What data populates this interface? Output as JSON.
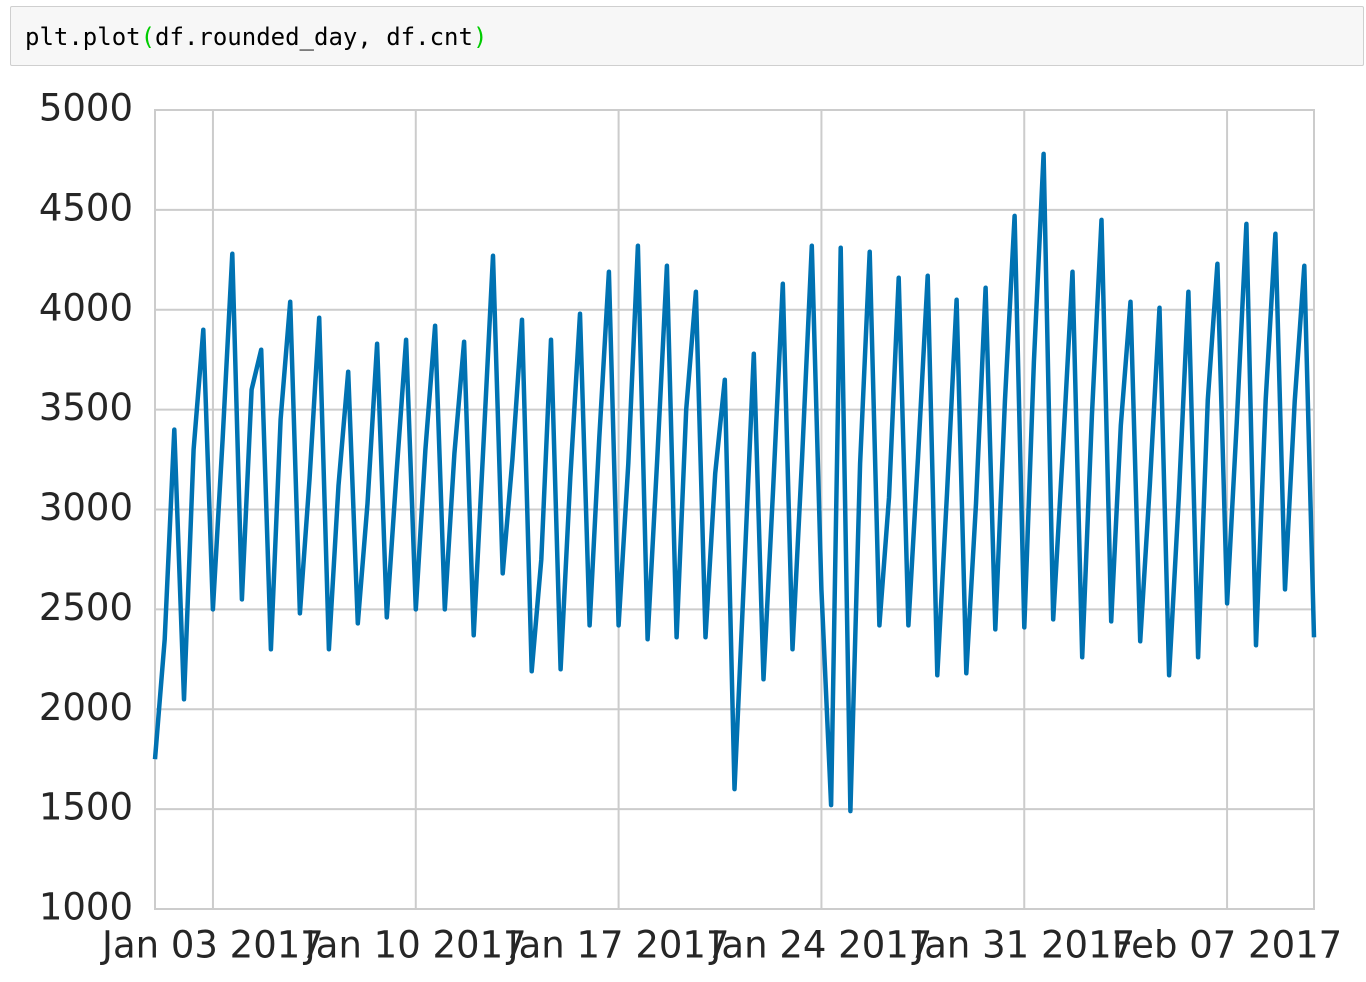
{
  "code": {
    "tokens": [
      {
        "text": "plt.plot",
        "color": "#000000"
      },
      {
        "text": "(",
        "color": "#00cc00"
      },
      {
        "text": "df.rounded_day, df.cnt",
        "color": "#000000"
      },
      {
        "text": ")",
        "color": "#00cc00"
      }
    ]
  },
  "chart_data": {
    "type": "line",
    "x": [
      "2017-01-01 00:00",
      "2017-01-01 08:00",
      "2017-01-01 16:00",
      "2017-01-02 00:00",
      "2017-01-02 08:00",
      "2017-01-02 16:00",
      "2017-01-03 00:00",
      "2017-01-03 08:00",
      "2017-01-03 16:00",
      "2017-01-04 00:00",
      "2017-01-04 08:00",
      "2017-01-04 16:00",
      "2017-01-05 00:00",
      "2017-01-05 08:00",
      "2017-01-05 16:00",
      "2017-01-06 00:00",
      "2017-01-06 08:00",
      "2017-01-06 16:00",
      "2017-01-07 00:00",
      "2017-01-07 08:00",
      "2017-01-07 16:00",
      "2017-01-08 00:00",
      "2017-01-08 08:00",
      "2017-01-08 16:00",
      "2017-01-09 00:00",
      "2017-01-09 08:00",
      "2017-01-09 16:00",
      "2017-01-10 00:00",
      "2017-01-10 08:00",
      "2017-01-10 16:00",
      "2017-01-11 00:00",
      "2017-01-11 08:00",
      "2017-01-11 16:00",
      "2017-01-12 00:00",
      "2017-01-12 08:00",
      "2017-01-12 16:00",
      "2017-01-13 00:00",
      "2017-01-13 08:00",
      "2017-01-13 16:00",
      "2017-01-14 00:00",
      "2017-01-14 08:00",
      "2017-01-14 16:00",
      "2017-01-15 00:00",
      "2017-01-15 08:00",
      "2017-01-15 16:00",
      "2017-01-16 00:00",
      "2017-01-16 08:00",
      "2017-01-16 16:00",
      "2017-01-17 00:00",
      "2017-01-17 08:00",
      "2017-01-17 16:00",
      "2017-01-18 00:00",
      "2017-01-18 08:00",
      "2017-01-18 16:00",
      "2017-01-19 00:00",
      "2017-01-19 08:00",
      "2017-01-19 16:00",
      "2017-01-20 00:00",
      "2017-01-20 08:00",
      "2017-01-20 16:00",
      "2017-01-21 00:00",
      "2017-01-21 08:00",
      "2017-01-21 16:00",
      "2017-01-22 00:00",
      "2017-01-22 08:00",
      "2017-01-22 16:00",
      "2017-01-23 00:00",
      "2017-01-23 08:00",
      "2017-01-23 16:00",
      "2017-01-24 00:00",
      "2017-01-24 08:00",
      "2017-01-24 16:00",
      "2017-01-25 00:00",
      "2017-01-25 08:00",
      "2017-01-25 16:00",
      "2017-01-26 00:00",
      "2017-01-26 08:00",
      "2017-01-26 16:00",
      "2017-01-27 00:00",
      "2017-01-27 08:00",
      "2017-01-27 16:00",
      "2017-01-28 00:00",
      "2017-01-28 08:00",
      "2017-01-28 16:00",
      "2017-01-29 00:00",
      "2017-01-29 08:00",
      "2017-01-29 16:00",
      "2017-01-30 00:00",
      "2017-01-30 08:00",
      "2017-01-30 16:00",
      "2017-01-31 00:00",
      "2017-01-31 08:00",
      "2017-01-31 16:00",
      "2017-02-01 00:00",
      "2017-02-01 08:00",
      "2017-02-01 16:00",
      "2017-02-02 00:00",
      "2017-02-02 08:00",
      "2017-02-02 16:00",
      "2017-02-03 00:00",
      "2017-02-03 08:00",
      "2017-02-03 16:00",
      "2017-02-04 00:00",
      "2017-02-04 08:00",
      "2017-02-04 16:00",
      "2017-02-05 00:00",
      "2017-02-05 08:00",
      "2017-02-05 16:00",
      "2017-02-06 00:00",
      "2017-02-06 08:00",
      "2017-02-06 16:00",
      "2017-02-07 00:00",
      "2017-02-07 08:00",
      "2017-02-07 16:00",
      "2017-02-08 00:00",
      "2017-02-08 08:00",
      "2017-02-08 16:00",
      "2017-02-09 00:00",
      "2017-02-09 08:00",
      "2017-02-09 16:00",
      "2017-02-10 00:00"
    ],
    "series": [
      {
        "name": "cnt",
        "color": "#0072b2",
        "values": [
          1750,
          2350,
          3400,
          2050,
          3300,
          3900,
          2500,
          3350,
          4280,
          2550,
          3600,
          3800,
          2300,
          3450,
          4040,
          2480,
          3150,
          3960,
          2300,
          3120,
          3690,
          2430,
          3030,
          3830,
          2460,
          3180,
          3850,
          2500,
          3300,
          3920,
          2500,
          3280,
          3840,
          2370,
          3320,
          4270,
          2680,
          3250,
          3950,
          2190,
          2750,
          3850,
          2200,
          3160,
          3980,
          2420,
          3360,
          4190,
          2420,
          3230,
          4320,
          2350,
          3250,
          4220,
          2360,
          3500,
          4090,
          2360,
          3180,
          3650,
          1600,
          2680,
          3780,
          2150,
          3100,
          4130,
          2300,
          3260,
          4320,
          2600,
          1520,
          4310,
          1490,
          3230,
          4290,
          2420,
          3060,
          4160,
          2420,
          3260,
          4170,
          2170,
          3080,
          4050,
          2180,
          3030,
          4110,
          2400,
          3540,
          4470,
          2410,
          3740,
          4780,
          2450,
          3300,
          4190,
          2260,
          3470,
          4450,
          2440,
          3420,
          4040,
          2340,
          3120,
          4010,
          2170,
          3060,
          4090,
          2260,
          3550,
          4230,
          2530,
          3430,
          4430,
          2320,
          3550,
          4380,
          2600,
          3540,
          4220,
          2360
        ]
      }
    ],
    "xlim": [
      "2017-01-01 00:00",
      "2017-02-10 00:00"
    ],
    "xticks": [
      {
        "value": "2017-01-03 00:00",
        "label": "Jan 03 2017"
      },
      {
        "value": "2017-01-10 00:00",
        "label": "Jan 10 2017"
      },
      {
        "value": "2017-01-17 00:00",
        "label": "Jan 17 2017"
      },
      {
        "value": "2017-01-24 00:00",
        "label": "Jan 24 2017"
      },
      {
        "value": "2017-01-31 00:00",
        "label": "Jan 31 2017"
      },
      {
        "value": "2017-02-07 00:00",
        "label": "Feb 07 2017"
      }
    ],
    "ylim": [
      1000,
      5000
    ],
    "yticks": [
      1000,
      1500,
      2000,
      2500,
      3000,
      3500,
      4000,
      4500,
      5000
    ],
    "grid": true
  }
}
